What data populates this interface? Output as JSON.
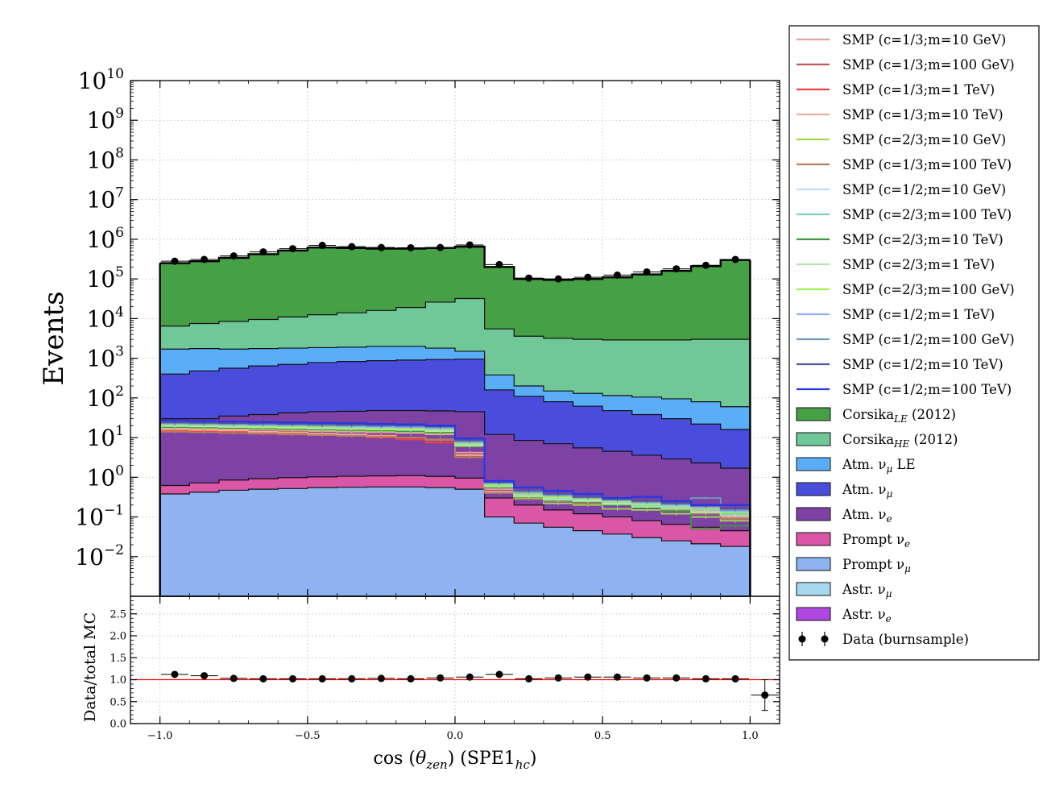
{
  "chart_data": [
    {
      "type": "area",
      "ylabel": "Events",
      "yscale": "log",
      "ylim": [
        0.001,
        10000000000
      ],
      "xlim": [
        -1.1,
        1.1
      ],
      "grid": true,
      "legend_position": "outside-right",
      "y_ticks": [
        {
          "base": "10",
          "exp": "10"
        },
        {
          "base": "10",
          "exp": "9"
        },
        {
          "base": "10",
          "exp": "8"
        },
        {
          "base": "10",
          "exp": "7"
        },
        {
          "base": "10",
          "exp": "6"
        },
        {
          "base": "10",
          "exp": "5"
        },
        {
          "base": "10",
          "exp": "4"
        },
        {
          "base": "10",
          "exp": "3"
        },
        {
          "base": "10",
          "exp": "2"
        },
        {
          "base": "10",
          "exp": "1"
        },
        {
          "base": "10",
          "exp": "0"
        },
        {
          "base": "10",
          "exp": "−1"
        },
        {
          "base": "10",
          "exp": "−2"
        }
      ],
      "bin_edges": [
        -1.0,
        -0.9,
        -0.8,
        -0.7,
        -0.6,
        -0.5,
        -0.4,
        -0.3,
        -0.2,
        -0.1,
        0.0,
        0.1,
        0.2,
        0.3,
        0.4,
        0.5,
        0.6,
        0.7,
        0.8,
        0.9,
        1.0
      ],
      "stack": [
        {
          "name": "Prompt ν_μ",
          "color": "#8fb2f0",
          "cumulative": [
            0.38,
            0.42,
            0.47,
            0.5,
            0.52,
            0.55,
            0.56,
            0.57,
            0.57,
            0.55,
            0.5,
            0.1,
            0.07,
            0.055,
            0.045,
            0.037,
            0.03,
            0.025,
            0.021,
            0.018
          ]
        },
        {
          "name": "Prompt ν_e",
          "color": "#d957a6",
          "cumulative": [
            0.62,
            0.72,
            0.85,
            0.92,
            0.98,
            1.02,
            1.06,
            1.08,
            1.1,
            1.05,
            0.95,
            0.3,
            0.2,
            0.15,
            0.12,
            0.1,
            0.08,
            0.065,
            0.055,
            0.045
          ]
        },
        {
          "name": "Atm. ν_e",
          "color": "#7d42a4",
          "cumulative": [
            30,
            30,
            35,
            38,
            42,
            45,
            46,
            48,
            48,
            47,
            45,
            12,
            8.5,
            7,
            5.5,
            4.5,
            3.6,
            2.9,
            2.3,
            1.7
          ]
        },
        {
          "name": "Atm. ν_μ",
          "color": "#4a4cdc",
          "cumulative": [
            400,
            480,
            560,
            640,
            700,
            780,
            830,
            870,
            900,
            930,
            950,
            160,
            110,
            80,
            62,
            48,
            38,
            30,
            22,
            16
          ]
        },
        {
          "name": "Atm. ν_μ LE",
          "color": "#5aaef8",
          "cumulative": [
            1700,
            1750,
            1700,
            1750,
            1800,
            1850,
            1900,
            2000,
            2000,
            1800,
            1500,
            380,
            200,
            150,
            130,
            115,
            105,
            95,
            80,
            60
          ]
        },
        {
          "name": "Corsika_HE (2012)",
          "color": "#70c898",
          "cumulative": [
            6500,
            7500,
            8500,
            9500,
            11000,
            12500,
            14000,
            16000,
            19000,
            26000,
            32000,
            5500,
            3600,
            3200,
            3000,
            2900,
            2900,
            2900,
            3000,
            3000
          ]
        },
        {
          "name": "Corsika_LE (2012)",
          "color": "#46a046",
          "cumulative": [
            250000,
            280000,
            340000,
            420000,
            520000,
            620000,
            600000,
            580000,
            580000,
            600000,
            650000,
            200000,
            100000,
            95000,
            100000,
            110000,
            130000,
            160000,
            210000,
            300000
          ]
        }
      ],
      "smp_lines": [
        {
          "name": "SMP (c=1/3;m=10 GeV)",
          "color": "#dfa0a4",
          "values": [
            17,
            16.5,
            16,
            15.5,
            15,
            14.5,
            14,
            13.5,
            13,
            12,
            4.2,
            0.5,
            0.35,
            0.3,
            0.28,
            0.25,
            0.22,
            0.2,
            0.18,
            0.12
          ]
        },
        {
          "name": "SMP (c=1/3;m=100 GeV)",
          "color": "#c0585c",
          "values": [
            16,
            15.5,
            15,
            14.5,
            14,
            13,
            12,
            11.5,
            10,
            8.5,
            3.8,
            0.45,
            0.33,
            0.28,
            0.26,
            0.23,
            0.2,
            0.18,
            0.15,
            0.1
          ]
        },
        {
          "name": "SMP (c=1/3;m=1 TeV)",
          "color": "#f04040",
          "values": [
            15,
            14.5,
            14,
            13.5,
            12.5,
            12,
            11,
            10,
            9,
            7.5,
            3.5,
            0.42,
            0.3,
            0.26,
            0.24,
            0.21,
            0.19,
            0.16,
            0.13,
            0.09
          ]
        },
        {
          "name": "SMP (c=1/3;m=10 TeV)",
          "color": "#ecb0a0",
          "values": [
            16,
            15.5,
            15,
            14,
            13.5,
            12.5,
            12,
            11,
            10,
            9,
            3.6,
            0.43,
            0.31,
            0.27,
            0.25,
            0.22,
            0.2,
            0.17,
            0.14,
            0.1
          ]
        },
        {
          "name": "SMP (c=2/3;m=10 GeV)",
          "color": "#a8d850",
          "values": [
            18,
            17.5,
            17,
            16.5,
            16,
            15.5,
            15,
            14.5,
            14,
            13,
            6,
            0.55,
            0.3,
            0.22,
            0.2,
            0.16,
            0.15,
            0.12,
            0.1,
            0.08
          ]
        },
        {
          "name": "SMP (c=1/3;m=100 TeV)",
          "color": "#b08060",
          "values": [
            14,
            13.5,
            13,
            12.5,
            12,
            11.5,
            11,
            10.5,
            10,
            9,
            3.2,
            0.4,
            0.28,
            0.25,
            0.22,
            0.2,
            0.18,
            0.15,
            0.12,
            0.09
          ]
        },
        {
          "name": "SMP (c=1/2;m=10 GeV)",
          "color": "#c0dcf0",
          "values": [
            20,
            19.5,
            19,
            18.5,
            18,
            17.5,
            17,
            16.5,
            16,
            15,
            6.5,
            0.6,
            0.35,
            0.3,
            0.26,
            0.22,
            0.2,
            0.18,
            0.2,
            0.14
          ]
        },
        {
          "name": "SMP (c=2/3;m=100 TeV)",
          "color": "#80d0c0",
          "values": [
            19,
            18.5,
            18,
            17.5,
            17,
            16.5,
            16,
            15.5,
            15,
            14,
            6.2,
            0.58,
            0.34,
            0.28,
            0.25,
            0.21,
            0.19,
            0.17,
            0.15,
            0.12
          ]
        },
        {
          "name": "SMP (c=2/3;m=10 TeV)",
          "color": "#409840",
          "values": [
            18.5,
            18,
            17.5,
            17,
            16.5,
            16,
            15.5,
            15,
            14.5,
            13.5,
            6.1,
            0.56,
            0.32,
            0.26,
            0.24,
            0.2,
            0.17,
            0.14,
            0.05,
            0.06
          ]
        },
        {
          "name": "SMP (c=2/3;m=1 TeV)",
          "color": "#b0e8a8",
          "values": [
            19.5,
            19,
            18.5,
            18,
            17.5,
            17,
            16.5,
            16,
            15.5,
            14.5,
            6.3,
            0.59,
            0.33,
            0.27,
            0.25,
            0.21,
            0.18,
            0.16,
            0.13,
            0.11
          ]
        },
        {
          "name": "SMP (c=2/3;m=100 GeV)",
          "color": "#a0f050",
          "values": [
            21,
            20.5,
            20,
            19.5,
            19,
            18.5,
            18,
            17.5,
            17,
            16,
            7,
            0.65,
            0.38,
            0.32,
            0.28,
            0.24,
            0.21,
            0.19,
            0.16,
            0.13
          ]
        },
        {
          "name": "SMP (c=1/2;m=1 TeV)",
          "color": "#90b0f0",
          "values": [
            22,
            21.5,
            21,
            20.5,
            20,
            19.5,
            19,
            18.5,
            18,
            17,
            7.5,
            0.7,
            0.42,
            0.35,
            0.3,
            0.26,
            0.23,
            0.2,
            0.17,
            0.14
          ]
        },
        {
          "name": "SMP (c=1/2;m=100 GeV)",
          "color": "#7098c0",
          "values": [
            23,
            22.5,
            22,
            21.5,
            21,
            20.5,
            20,
            19.5,
            19,
            18,
            8,
            0.72,
            0.44,
            0.36,
            0.31,
            0.27,
            0.24,
            0.21,
            0.3,
            0.15
          ]
        },
        {
          "name": "SMP (c=1/2;m=10 TeV)",
          "color": "#505898",
          "values": [
            24,
            23.5,
            23,
            22.5,
            22,
            21.5,
            21,
            20.5,
            20,
            19,
            8.5,
            0.75,
            0.46,
            0.38,
            0.32,
            0.28,
            0.25,
            0.22,
            0.19,
            0.16
          ]
        },
        {
          "name": "SMP (c=1/2;m=100 TeV)",
          "color": "#2838e0",
          "values": [
            27,
            26,
            25,
            24.5,
            24,
            23.5,
            23,
            22,
            21.5,
            20,
            9.5,
            0.8,
            0.55,
            0.45,
            0.38,
            0.3,
            0.32,
            0.25,
            0.2,
            0.2
          ]
        }
      ],
      "data_points": {
        "name": "Data (burnsample)",
        "color": "#000000",
        "x": [
          -0.95,
          -0.85,
          -0.75,
          -0.65,
          -0.55,
          -0.45,
          -0.35,
          -0.25,
          -0.15,
          -0.05,
          0.05,
          0.15,
          0.25,
          0.35,
          0.45,
          0.55,
          0.65,
          0.75,
          0.85,
          0.95
        ],
        "y": [
          280000,
          310000,
          380000,
          480000,
          580000,
          700000,
          650000,
          620000,
          610000,
          620000,
          720000,
          230000,
          105000,
          100000,
          110000,
          125000,
          150000,
          180000,
          220000,
          310000
        ]
      },
      "legend": [
        {
          "label": "SMP (c=1/3;m=10 GeV)",
          "kind": "line",
          "color": "#dfa0a4"
        },
        {
          "label": "SMP (c=1/3;m=100 GeV)",
          "kind": "line",
          "color": "#c0585c"
        },
        {
          "label": "SMP (c=1/3;m=1 TeV)",
          "kind": "line",
          "color": "#f04040"
        },
        {
          "label": "SMP (c=1/3;m=10 TeV)",
          "kind": "line",
          "color": "#ecb0a0"
        },
        {
          "label": "SMP (c=2/3;m=10 GeV)",
          "kind": "line",
          "color": "#a8d850"
        },
        {
          "label": "SMP (c=1/3;m=100 TeV)",
          "kind": "line",
          "color": "#b08060"
        },
        {
          "label": "SMP (c=1/2;m=10 GeV)",
          "kind": "line",
          "color": "#c0dcf0"
        },
        {
          "label": "SMP (c=2/3;m=100 TeV)",
          "kind": "line",
          "color": "#80d0c0"
        },
        {
          "label": "SMP (c=2/3;m=10 TeV)",
          "kind": "line",
          "color": "#409840"
        },
        {
          "label": "SMP (c=2/3;m=1 TeV)",
          "kind": "line",
          "color": "#b0e8a8"
        },
        {
          "label": "SMP (c=2/3;m=100 GeV)",
          "kind": "line",
          "color": "#a0f050"
        },
        {
          "label": "SMP (c=1/2;m=1 TeV)",
          "kind": "line",
          "color": "#90b0f0"
        },
        {
          "label": "SMP (c=1/2;m=100 GeV)",
          "kind": "line",
          "color": "#7098c0"
        },
        {
          "label": "SMP (c=1/2;m=10 TeV)",
          "kind": "line",
          "color": "#505898"
        },
        {
          "label": "SMP (c=1/2;m=100 TeV)",
          "kind": "line",
          "color": "#2838e0"
        },
        {
          "label": "Corsika",
          "sub": "LE",
          "suffix": " (2012)",
          "kind": "patch",
          "color": "#46a046"
        },
        {
          "label": "Corsika",
          "sub": "HE",
          "suffix": " (2012)",
          "kind": "patch",
          "color": "#70c898"
        },
        {
          "label": "Atm. ν",
          "sub": "μ",
          "suffix": " LE",
          "kind": "patch",
          "color": "#5aaef8"
        },
        {
          "label": "Atm. ν",
          "sub": "μ",
          "suffix": "",
          "kind": "patch",
          "color": "#4a4cdc"
        },
        {
          "label": "Atm. ν",
          "sub": "e",
          "suffix": "",
          "kind": "patch",
          "color": "#7d42a4"
        },
        {
          "label": "Prompt ν",
          "sub": "e",
          "suffix": "",
          "kind": "patch",
          "color": "#d957a6"
        },
        {
          "label": "Prompt ν",
          "sub": "μ",
          "suffix": "",
          "kind": "patch",
          "color": "#8fb2f0"
        },
        {
          "label": "Astr. ν",
          "sub": "μ",
          "suffix": "",
          "kind": "patch",
          "color": "#a6d8ee"
        },
        {
          "label": "Astr. ν",
          "sub": "e",
          "suffix": "",
          "kind": "patch",
          "color": "#b048e0"
        },
        {
          "label": "Data (burnsample)",
          "sub": "",
          "suffix": "",
          "kind": "errorbar",
          "color": "#000000"
        }
      ]
    },
    {
      "type": "scatter",
      "ylabel": "Data/total MC",
      "ylim": [
        0.0,
        2.9
      ],
      "xlim": [
        -1.1,
        1.1
      ],
      "grid": true,
      "y_ticks": [
        "0.0",
        "0.5",
        "1.0",
        "1.5",
        "2.0",
        "2.5"
      ],
      "x_ticks": [
        "−1.0",
        "−0.5",
        "0.0",
        "0.5",
        "1.0"
      ],
      "xlabel": {
        "prefix": "cos",
        "theta": "θ",
        "sub1": "zen",
        "mid": "SPE1",
        "sub2": "hc"
      },
      "reference_line": {
        "y": 1.0,
        "color": "#ff0000"
      },
      "x": [
        -0.95,
        -0.85,
        -0.75,
        -0.65,
        -0.55,
        -0.45,
        -0.35,
        -0.25,
        -0.15,
        -0.05,
        0.05,
        0.15,
        0.25,
        0.35,
        0.45,
        0.55,
        0.65,
        0.75,
        0.85,
        0.95,
        1.05
      ],
      "y": [
        1.12,
        1.09,
        1.03,
        1.02,
        1.02,
        1.02,
        1.02,
        1.03,
        1.02,
        1.04,
        1.06,
        1.12,
        1.02,
        1.04,
        1.06,
        1.06,
        1.04,
        1.04,
        1.02,
        1.02,
        0.65
      ],
      "y_err": [
        0.02,
        0.02,
        0.02,
        0.02,
        0.02,
        0.02,
        0.02,
        0.02,
        0.02,
        0.02,
        0.02,
        0.02,
        0.02,
        0.02,
        0.02,
        0.02,
        0.02,
        0.02,
        0.02,
        0.02,
        0.35
      ]
    }
  ]
}
